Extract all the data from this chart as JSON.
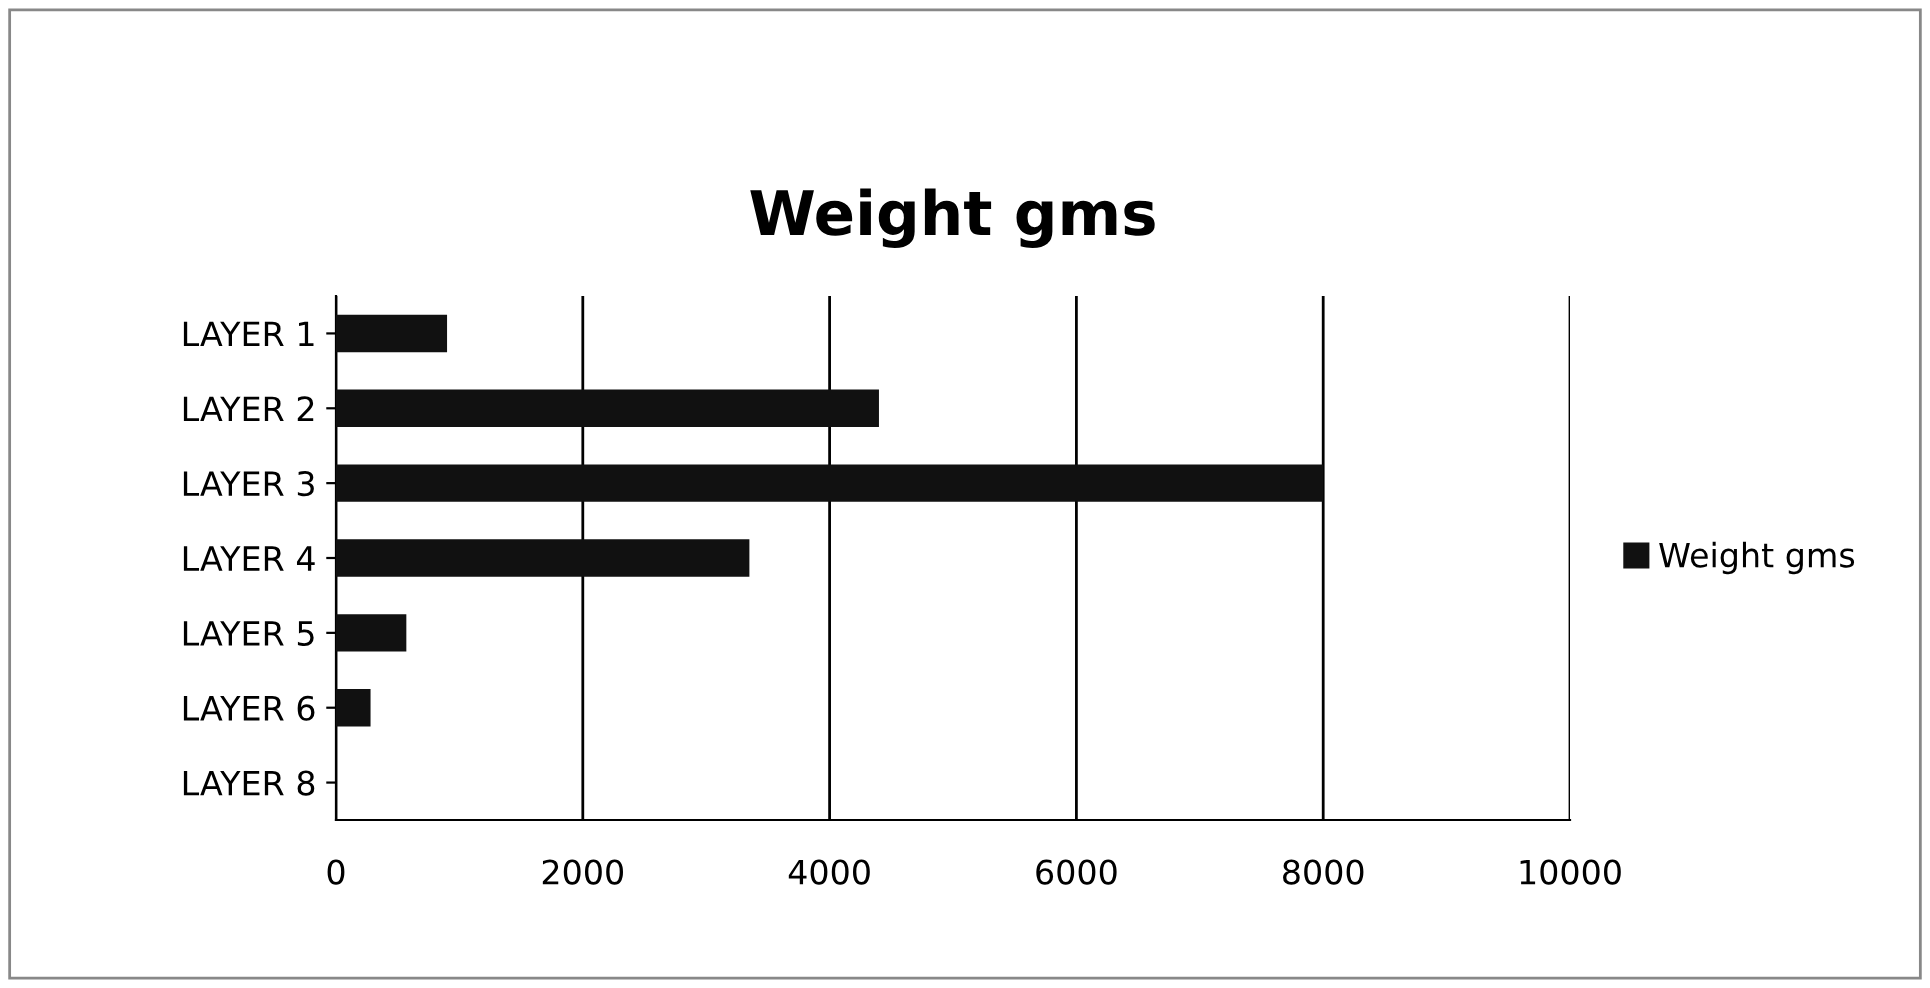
{
  "chart_data": {
    "type": "bar",
    "orientation": "horizontal",
    "title": "Weight gms",
    "categories": [
      "LAYER 1",
      "LAYER 2",
      "LAYER 3",
      "LAYER 4",
      "LAYER 5",
      "LAYER 6",
      "LAYER 8"
    ],
    "series": [
      {
        "name": "Weight gms",
        "color": "#111111",
        "values": [
          900,
          4400,
          8000,
          3350,
          570,
          280,
          0
        ]
      }
    ],
    "xlim": [
      0,
      10000
    ],
    "xticks": [
      0,
      2000,
      4000,
      6000,
      8000,
      10000
    ],
    "grid": "x",
    "legend": "right"
  }
}
